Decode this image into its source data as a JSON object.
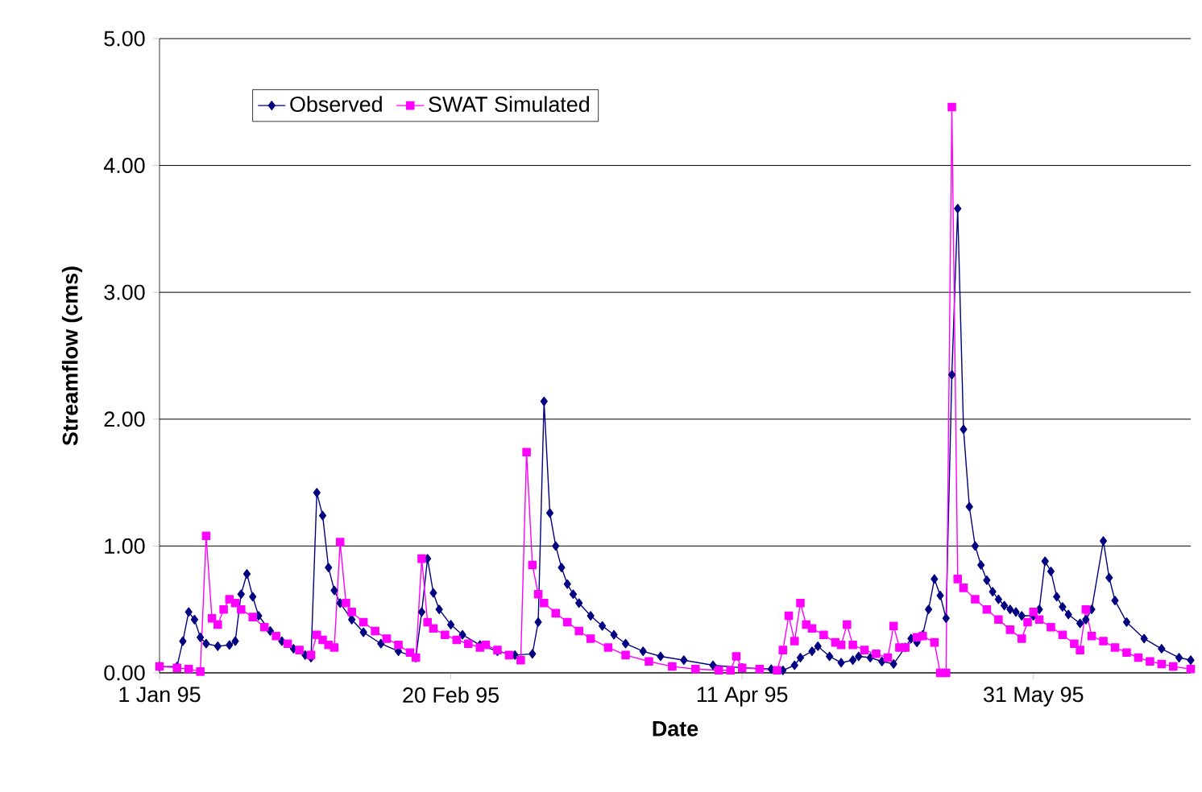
{
  "chart_data": {
    "type": "line",
    "xlabel": "Date",
    "ylabel": "Streamflow (cms)",
    "xlim": [
      "1995-01-01",
      "1995-06-27"
    ],
    "xticks": [
      {
        "value": "1995-01-01",
        "label": "1 Jan 95"
      },
      {
        "value": "1995-02-20",
        "label": "20 Feb 95"
      },
      {
        "value": "1995-04-11",
        "label": "11 Apr 95"
      },
      {
        "value": "1995-05-31",
        "label": "31 May 95"
      }
    ],
    "ylim": [
      0,
      5
    ],
    "yticks": [
      {
        "value": 0,
        "label": "0.00"
      },
      {
        "value": 1,
        "label": "1.00"
      },
      {
        "value": 2,
        "label": "2.00"
      },
      {
        "value": 3,
        "label": "3.00"
      },
      {
        "value": 4,
        "label": "4.00"
      },
      {
        "value": 5,
        "label": "5.00"
      }
    ],
    "grid": "y",
    "legend": "top left",
    "series": [
      {
        "name": "Observed",
        "color": "#000080",
        "marker": "diamond",
        "x": [
          "1995-01-01",
          "1995-01-04",
          "1995-01-05",
          "1995-01-06",
          "1995-01-07",
          "1995-01-08",
          "1995-01-09",
          "1995-01-11",
          "1995-01-13",
          "1995-01-14",
          "1995-01-15",
          "1995-01-16",
          "1995-01-17",
          "1995-01-18",
          "1995-01-20",
          "1995-01-22",
          "1995-01-24",
          "1995-01-26",
          "1995-01-27",
          "1995-01-28",
          "1995-01-29",
          "1995-01-30",
          "1995-01-31",
          "1995-02-01",
          "1995-02-03",
          "1995-02-05",
          "1995-02-08",
          "1995-02-11",
          "1995-02-14",
          "1995-02-15",
          "1995-02-16",
          "1995-02-17",
          "1995-02-18",
          "1995-02-20",
          "1995-02-22",
          "1995-02-25",
          "1995-02-28",
          "1995-03-03",
          "1995-03-06",
          "1995-03-07",
          "1995-03-08",
          "1995-03-09",
          "1995-03-10",
          "1995-03-11",
          "1995-03-12",
          "1995-03-13",
          "1995-03-14",
          "1995-03-16",
          "1995-03-18",
          "1995-03-20",
          "1995-03-22",
          "1995-03-25",
          "1995-03-28",
          "1995-04-01",
          "1995-04-06",
          "1995-04-11",
          "1995-04-16",
          "1995-04-18",
          "1995-04-20",
          "1995-04-21",
          "1995-04-23",
          "1995-04-24",
          "1995-04-26",
          "1995-04-28",
          "1995-04-30",
          "1995-05-01",
          "1995-05-03",
          "1995-05-05",
          "1995-05-07",
          "1995-05-09",
          "1995-05-10",
          "1995-05-11",
          "1995-05-12",
          "1995-05-13",
          "1995-05-14",
          "1995-05-15",
          "1995-05-16",
          "1995-05-17",
          "1995-05-18",
          "1995-05-19",
          "1995-05-20",
          "1995-05-21",
          "1995-05-22",
          "1995-05-23",
          "1995-05-24",
          "1995-05-25",
          "1995-05-26",
          "1995-05-27",
          "1995-05-28",
          "1995-05-29",
          "1995-05-31",
          "1995-06-01",
          "1995-06-02",
          "1995-06-03",
          "1995-06-04",
          "1995-06-05",
          "1995-06-06",
          "1995-06-08",
          "1995-06-09",
          "1995-06-10",
          "1995-06-12",
          "1995-06-13",
          "1995-06-14",
          "1995-06-16",
          "1995-06-19",
          "1995-06-22",
          "1995-06-25",
          "1995-06-27"
        ],
        "values": [
          0.05,
          0.05,
          0.25,
          0.48,
          0.42,
          0.28,
          0.23,
          0.21,
          0.22,
          0.25,
          0.62,
          0.78,
          0.6,
          0.45,
          0.33,
          0.25,
          0.19,
          0.14,
          0.12,
          1.42,
          1.24,
          0.83,
          0.65,
          0.55,
          0.42,
          0.32,
          0.23,
          0.17,
          0.12,
          0.48,
          0.9,
          0.63,
          0.5,
          0.38,
          0.3,
          0.22,
          0.17,
          0.14,
          0.15,
          0.4,
          2.14,
          1.26,
          1.0,
          0.83,
          0.7,
          0.62,
          0.55,
          0.45,
          0.37,
          0.3,
          0.23,
          0.17,
          0.13,
          0.1,
          0.06,
          0.04,
          0.03,
          0.02,
          0.06,
          0.12,
          0.17,
          0.21,
          0.13,
          0.08,
          0.1,
          0.13,
          0.12,
          0.09,
          0.07,
          0.2,
          0.27,
          0.24,
          0.3,
          0.5,
          0.74,
          0.61,
          0.43,
          2.35,
          3.66,
          1.92,
          1.31,
          1.0,
          0.85,
          0.73,
          0.64,
          0.58,
          0.53,
          0.5,
          0.48,
          0.45,
          0.45,
          0.5,
          0.88,
          0.8,
          0.6,
          0.52,
          0.46,
          0.39,
          0.42,
          0.5,
          1.04,
          0.75,
          0.57,
          0.4,
          0.27,
          0.19,
          0.12,
          0.1
        ]
      },
      {
        "name": "SWAT Simulated",
        "color": "#ff00ff",
        "marker": "square",
        "x": [
          "1995-01-01",
          "1995-01-04",
          "1995-01-06",
          "1995-01-08",
          "1995-01-09",
          "1995-01-10",
          "1995-01-11",
          "1995-01-12",
          "1995-01-13",
          "1995-01-14",
          "1995-01-15",
          "1995-01-17",
          "1995-01-19",
          "1995-01-21",
          "1995-01-23",
          "1995-01-25",
          "1995-01-27",
          "1995-01-28",
          "1995-01-29",
          "1995-01-30",
          "1995-01-31",
          "1995-02-01",
          "1995-02-02",
          "1995-02-03",
          "1995-02-05",
          "1995-02-07",
          "1995-02-09",
          "1995-02-11",
          "1995-02-13",
          "1995-02-14",
          "1995-02-15",
          "1995-02-16",
          "1995-02-17",
          "1995-02-19",
          "1995-02-21",
          "1995-02-23",
          "1995-02-25",
          "1995-02-26",
          "1995-02-28",
          "1995-03-02",
          "1995-03-04",
          "1995-03-05",
          "1995-03-06",
          "1995-03-07",
          "1995-03-08",
          "1995-03-10",
          "1995-03-12",
          "1995-03-14",
          "1995-03-16",
          "1995-03-19",
          "1995-03-22",
          "1995-03-26",
          "1995-03-30",
          "1995-04-03",
          "1995-04-07",
          "1995-04-09",
          "1995-04-10",
          "1995-04-11",
          "1995-04-14",
          "1995-04-17",
          "1995-04-18",
          "1995-04-19",
          "1995-04-20",
          "1995-04-21",
          "1995-04-22",
          "1995-04-23",
          "1995-04-25",
          "1995-04-27",
          "1995-04-28",
          "1995-04-29",
          "1995-04-30",
          "1995-05-02",
          "1995-05-04",
          "1995-05-06",
          "1995-05-07",
          "1995-05-08",
          "1995-05-09",
          "1995-05-11",
          "1995-05-12",
          "1995-05-14",
          "1995-05-15",
          "1995-05-16",
          "1995-05-17",
          "1995-05-18",
          "1995-05-19",
          "1995-05-21",
          "1995-05-23",
          "1995-05-25",
          "1995-05-27",
          "1995-05-29",
          "1995-05-30",
          "1995-05-31",
          "1995-06-01",
          "1995-06-03",
          "1995-06-05",
          "1995-06-07",
          "1995-06-08",
          "1995-06-09",
          "1995-06-10",
          "1995-06-12",
          "1995-06-14",
          "1995-06-16",
          "1995-06-18",
          "1995-06-20",
          "1995-06-22",
          "1995-06-24",
          "1995-06-27"
        ],
        "values": [
          0.05,
          0.04,
          0.03,
          0.01,
          1.08,
          0.43,
          0.38,
          0.5,
          0.58,
          0.55,
          0.5,
          0.44,
          0.36,
          0.29,
          0.23,
          0.18,
          0.14,
          0.3,
          0.26,
          0.22,
          0.2,
          1.03,
          0.55,
          0.48,
          0.4,
          0.33,
          0.27,
          0.22,
          0.16,
          0.12,
          0.9,
          0.4,
          0.35,
          0.3,
          0.26,
          0.23,
          0.2,
          0.22,
          0.18,
          0.14,
          0.1,
          1.74,
          0.85,
          0.62,
          0.55,
          0.47,
          0.4,
          0.33,
          0.27,
          0.2,
          0.14,
          0.09,
          0.05,
          0.03,
          0.02,
          0.02,
          0.13,
          0.04,
          0.03,
          0.02,
          0.18,
          0.45,
          0.25,
          0.55,
          0.38,
          0.35,
          0.3,
          0.24,
          0.22,
          0.38,
          0.22,
          0.18,
          0.15,
          0.12,
          0.37,
          0.2,
          0.2,
          0.28,
          0.29,
          0.24,
          0,
          0,
          4.46,
          0.74,
          0.67,
          0.58,
          0.5,
          0.42,
          0.34,
          0.27,
          0.4,
          0.48,
          0.42,
          0.36,
          0.3,
          0.23,
          0.18,
          0.5,
          0.29,
          0.25,
          0.2,
          0.16,
          0.12,
          0.09,
          0.07,
          0.05,
          0.03
        ]
      }
    ]
  }
}
